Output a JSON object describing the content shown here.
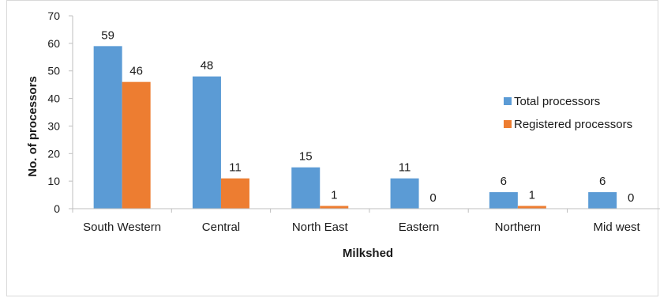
{
  "chart_data": {
    "type": "bar",
    "categories": [
      "South Western",
      "Central",
      "North East",
      "Eastern",
      "Northern",
      "Mid west"
    ],
    "series": [
      {
        "name": "Total processors",
        "values": [
          59,
          48,
          15,
          11,
          6,
          6
        ],
        "color": "#5b9bd5"
      },
      {
        "name": "Registered processors",
        "values": [
          46,
          11,
          1,
          0,
          1,
          0
        ],
        "color": "#ed7d31"
      }
    ],
    "xlabel": "Milkshed",
    "ylabel": "No. of processors",
    "ylim": [
      0,
      70
    ],
    "yticks": [
      0,
      10,
      20,
      30,
      40,
      50,
      60,
      70
    ],
    "grid": false,
    "legend_position": "right"
  }
}
